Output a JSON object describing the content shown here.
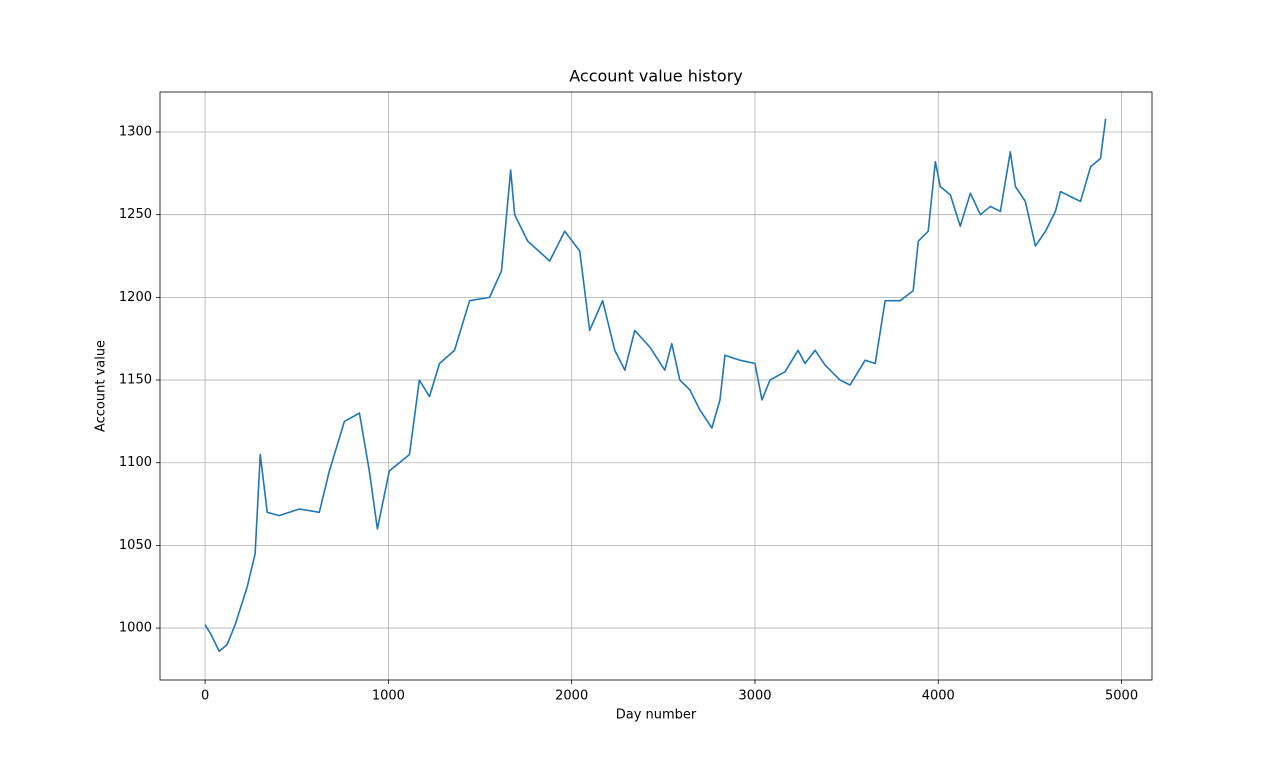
{
  "chart_data": {
    "type": "line",
    "title": "Account value history",
    "x_label": "Day number",
    "y_label": "Account value",
    "x": [
      0,
      33,
      77,
      120,
      164,
      230,
      273,
      301,
      339,
      404,
      514,
      623,
      678,
      760,
      842,
      896,
      940,
      1005,
      1115,
      1169,
      1224,
      1279,
      1361,
      1443,
      1552,
      1617,
      1667,
      1689,
      1760,
      1880,
      1962,
      2044,
      2098,
      2169,
      2235,
      2290,
      2344,
      2426,
      2508,
      2546,
      2590,
      2645,
      2699,
      2765,
      2809,
      2836,
      2918,
      3000,
      3038,
      3082,
      3164,
      3235,
      3273,
      3328,
      3383,
      3464,
      3519,
      3601,
      3656,
      3710,
      3792,
      3863,
      3891,
      3945,
      3984,
      4011,
      4066,
      4120,
      4175,
      4230,
      4284,
      4339,
      4393,
      4421,
      4475,
      4530,
      4585,
      4639,
      4667,
      4721,
      4776,
      4831,
      4885,
      4913
    ],
    "values": [
      1002,
      996,
      986,
      990,
      1002,
      1025,
      1045,
      1105,
      1070,
      1068,
      1072,
      1070,
      1095,
      1125,
      1130,
      1095,
      1060,
      1095,
      1105,
      1150,
      1140,
      1160,
      1168,
      1198,
      1200,
      1216,
      1277,
      1250,
      1234,
      1222,
      1240,
      1228,
      1180,
      1198,
      1168,
      1156,
      1180,
      1170,
      1156,
      1172,
      1150,
      1144,
      1132,
      1121,
      1138,
      1165,
      1162,
      1160,
      1138,
      1150,
      1155,
      1168,
      1160,
      1168,
      1159,
      1150,
      1147,
      1162,
      1160,
      1198,
      1198,
      1204,
      1234,
      1240,
      1282,
      1267,
      1262,
      1243,
      1263,
      1250,
      1255,
      1252,
      1288,
      1267,
      1258,
      1231,
      1240,
      1252,
      1264,
      1261,
      1258,
      1279,
      1284,
      1308
    ],
    "color": "#1f77b4",
    "xlim": [
      -246,
      5166
    ],
    "ylim": [
      968.6,
      1324.2
    ],
    "xticks": [
      0,
      1000,
      2000,
      3000,
      4000,
      5000
    ],
    "yticks": [
      1000,
      1050,
      1100,
      1150,
      1200,
      1250,
      1300
    ],
    "grid": true
  }
}
